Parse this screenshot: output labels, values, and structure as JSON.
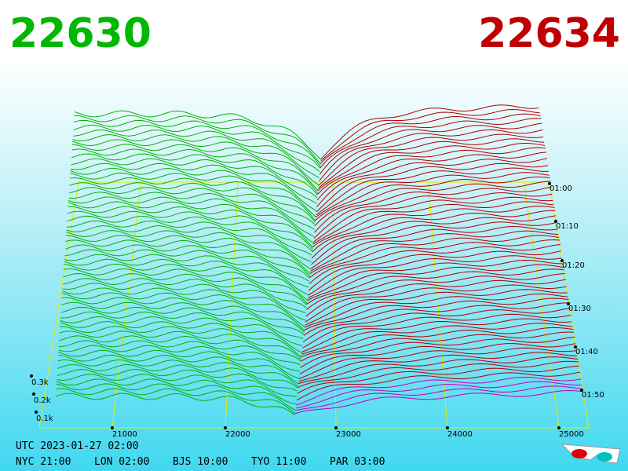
{
  "header": {
    "bid": "22630",
    "ask": "22634"
  },
  "x_axis": {
    "labels": [
      "21000",
      "22000",
      "23000",
      "24000",
      "25000"
    ]
  },
  "time_axis": {
    "labels": [
      "01:00",
      "01:10",
      "01:20",
      "01:30",
      "01:40",
      "01:50"
    ]
  },
  "depth_axis": {
    "labels": [
      "0.3k",
      "0.2k",
      "0.1k"
    ]
  },
  "footer": {
    "utc": "UTC 2023-01-27 02:00",
    "zones": [
      "NYC 21:00",
      "LON 02:00",
      "BJS 10:00",
      "TYO 11:00",
      "PAR 03:00"
    ]
  }
}
